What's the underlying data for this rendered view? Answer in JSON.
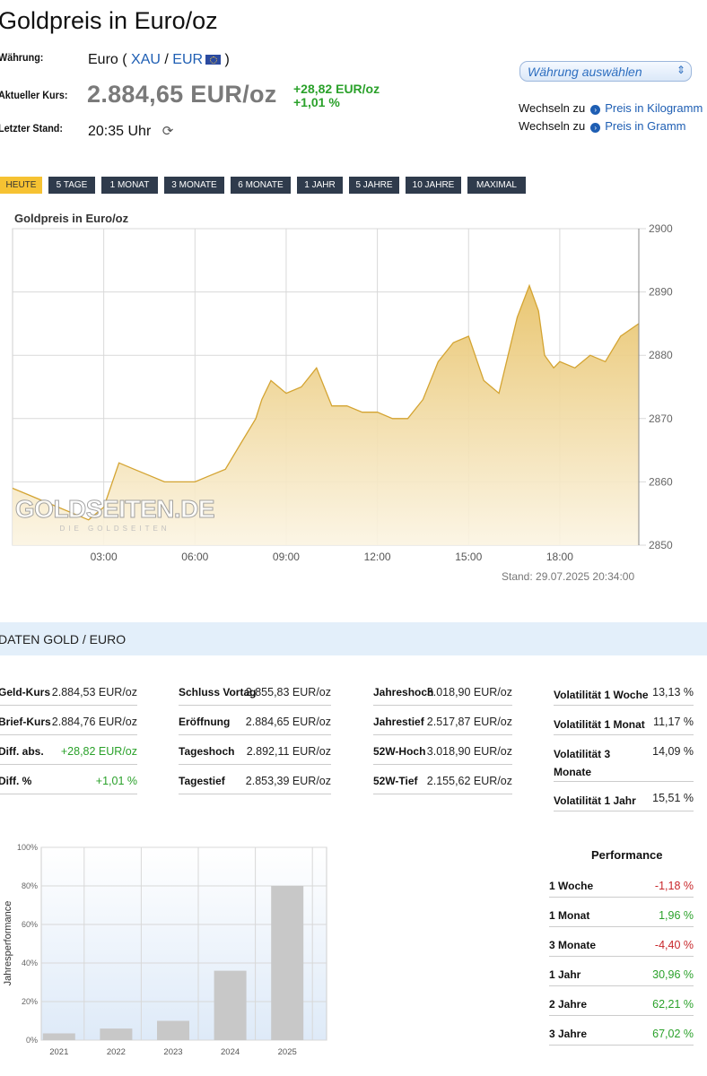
{
  "page_title": "Goldpreis in Euro/oz",
  "info": {
    "currency_label": "Währung:",
    "currency_prefix": "Euro (",
    "xau": "XAU",
    "slash": "/",
    "eur": "EUR",
    "currency_suffix": ")",
    "price_label": "Aktueller Kurs:",
    "price": "2.884,65 EUR/oz",
    "change_abs": "+28,82 EUR/oz",
    "change_pct": "+1,01 %",
    "last_label": "Letzter Stand:",
    "last_time": "20:35 Uhr"
  },
  "currency_select": {
    "label": "Währung auswählen"
  },
  "switch_links": [
    {
      "prefix": "Wechseln zu",
      "label": "Preis in Kilogramm"
    },
    {
      "prefix": "Wechseln zu",
      "label": "Preis in Gramm"
    }
  ],
  "tabs": [
    "HEUTE",
    "5 TAGE",
    "1 MONAT",
    "3 MONATE",
    "6 MONATE",
    "1 JAHR",
    "5 JAHRE",
    "10 JAHRE",
    "MAXIMAL"
  ],
  "active_tab": "HEUTE",
  "stand": "Stand: 29.07.2025 20:34:00",
  "watermark": {
    "main": "GOLDSEITEN.DE",
    "sub": "DIE GOLDSEITEN"
  },
  "section_title": "DATEN GOLD / EURO",
  "data_columns": [
    [
      {
        "label": "Geld-Kurs",
        "value": "2.884,53 EUR/oz"
      },
      {
        "label": "Brief-Kurs",
        "value": "2.884,76 EUR/oz"
      },
      {
        "label": "Diff. abs.",
        "value": "+28,82 EUR/oz"
      },
      {
        "label": "Diff. %",
        "value": "+1,01 %"
      }
    ],
    [
      {
        "label": "Schluss Vortag",
        "value": "2.855,83 EUR/oz"
      },
      {
        "label": "Eröffnung",
        "value": "2.884,65 EUR/oz"
      },
      {
        "label": "Tageshoch",
        "value": "2.892,11 EUR/oz"
      },
      {
        "label": "Tagestief",
        "value": "2.853,39 EUR/oz"
      }
    ],
    [
      {
        "label": "Jahreshoch",
        "value": "3.018,90 EUR/oz"
      },
      {
        "label": "Jahrestief",
        "value": "2.517,87 EUR/oz"
      },
      {
        "label": "52W-Hoch",
        "value": "3.018,90 EUR/oz"
      },
      {
        "label": "52W-Tief",
        "value": "2.155,62 EUR/oz"
      }
    ]
  ],
  "volatility": [
    {
      "label": "Volatilität 1 Woche",
      "value": "13,13 %"
    },
    {
      "label": "Volatilität 1 Monat",
      "value": "11,17 %"
    },
    {
      "label": "Volatilität 3 Monate",
      "value": "14,09 %"
    },
    {
      "label": "Volatilität 1 Jahr",
      "value": "15,51 %"
    }
  ],
  "performance": {
    "title": "Performance",
    "rows": [
      {
        "label": "1 Woche",
        "value": "-1,18 %"
      },
      {
        "label": "1 Monat",
        "value": "1,96 %"
      },
      {
        "label": "3 Monate",
        "value": "-4,40 %"
      },
      {
        "label": "1 Jahr",
        "value": "30,96 %"
      },
      {
        "label": "2 Jahre",
        "value": "62,21 %"
      },
      {
        "label": "3 Jahre",
        "value": "67,02 %"
      }
    ]
  },
  "colors": {
    "gold_line": "#d4a432",
    "positive": "#2aa12a",
    "negative": "#c8262a",
    "tab_bg": "#2f3b4c",
    "tab_active": "#f6c232",
    "link": "#1e5eb3"
  },
  "chart_data": [
    {
      "type": "area",
      "title": "Goldpreis in Euro/oz",
      "x_ticks": [
        "03:00",
        "06:00",
        "09:00",
        "12:00",
        "15:00",
        "18:00"
      ],
      "y_ticks": [
        2850,
        2860,
        2870,
        2880,
        2890,
        2900
      ],
      "ylim": [
        2850,
        2900
      ],
      "xlim_hours": [
        0,
        20.6
      ],
      "y_axis_side": "right",
      "grid": true,
      "x": [
        0,
        0.5,
        1,
        1.5,
        2,
        2.5,
        3,
        3.5,
        4,
        4.5,
        5,
        5.5,
        6,
        6.5,
        7,
        7.5,
        8,
        8.2,
        8.5,
        9,
        9.5,
        10,
        10.5,
        11,
        11.5,
        12,
        12.5,
        13,
        13.5,
        14,
        14.5,
        15,
        15.5,
        16,
        16.3,
        16.6,
        17,
        17.3,
        17.5,
        17.8,
        18,
        18.5,
        19,
        19.5,
        20,
        20.6
      ],
      "y": [
        2859,
        2858,
        2857,
        2856,
        2855,
        2854,
        2856,
        2863,
        2862,
        2861,
        2860,
        2860,
        2860,
        2861,
        2862,
        2866,
        2870,
        2873,
        2876,
        2874,
        2875,
        2878,
        2872,
        2872,
        2871,
        2871,
        2870,
        2870,
        2873,
        2879,
        2882,
        2883,
        2876,
        2874,
        2880,
        2886,
        2891,
        2887,
        2880,
        2878,
        2879,
        2878,
        2880,
        2879,
        2883,
        2885
      ]
    },
    {
      "type": "bar",
      "ylabel": "Jahresperformance",
      "categories": [
        "2021",
        "2022",
        "2023",
        "2024",
        "2025"
      ],
      "values": [
        3.5,
        6,
        10,
        36,
        80
      ],
      "ylim": [
        0,
        100
      ],
      "y_ticks": [
        "0%",
        "20%",
        "40%",
        "60%",
        "80%",
        "100%"
      ]
    }
  ]
}
